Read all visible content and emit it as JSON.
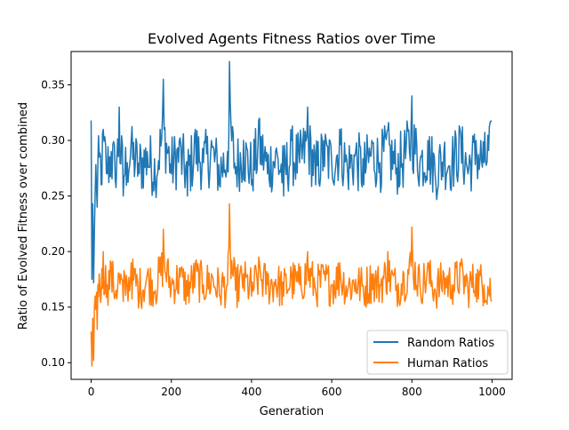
{
  "chart_data": {
    "type": "line",
    "title": "Evolved Agents Fitness Ratios over Time",
    "xlabel": "Generation",
    "ylabel": "Ratio of Evolved Fitness over combined",
    "xlim": [
      -50,
      1050
    ],
    "ylim": [
      0.085,
      0.38
    ],
    "xticks": [
      0,
      200,
      400,
      600,
      800,
      1000
    ],
    "yticks": [
      0.1,
      0.15,
      0.2,
      0.25,
      0.3,
      0.35
    ],
    "xtick_labels": [
      "0",
      "200",
      "400",
      "600",
      "800",
      "1000"
    ],
    "ytick_labels": [
      "0.10",
      "0.15",
      "0.20",
      "0.25",
      "0.30",
      "0.35"
    ],
    "grid": false,
    "legend_position": "lower right",
    "x_range": [
      0,
      999
    ],
    "series": [
      {
        "name": "Random Ratios",
        "color": "#1f77b4",
        "x": [
          0,
          2,
          4,
          6,
          8,
          10,
          15,
          20,
          25,
          30,
          40,
          50,
          60,
          70,
          80,
          90,
          100,
          120,
          140,
          160,
          180,
          200,
          220,
          240,
          260,
          280,
          300,
          320,
          340,
          345,
          360,
          380,
          400,
          420,
          440,
          460,
          480,
          500,
          520,
          540,
          560,
          580,
          600,
          620,
          640,
          660,
          680,
          700,
          720,
          740,
          760,
          780,
          800,
          820,
          840,
          860,
          880,
          900,
          920,
          940,
          960,
          980,
          999
        ],
        "values": [
          0.318,
          0.175,
          0.243,
          0.172,
          0.22,
          0.255,
          0.24,
          0.285,
          0.26,
          0.31,
          0.27,
          0.29,
          0.265,
          0.33,
          0.25,
          0.28,
          0.3,
          0.27,
          0.29,
          0.26,
          0.355,
          0.27,
          0.3,
          0.25,
          0.31,
          0.28,
          0.3,
          0.26,
          0.29,
          0.371,
          0.27,
          0.3,
          0.26,
          0.32,
          0.27,
          0.29,
          0.25,
          0.3,
          0.28,
          0.33,
          0.26,
          0.3,
          0.28,
          0.31,
          0.27,
          0.29,
          0.26,
          0.3,
          0.28,
          0.31,
          0.27,
          0.29,
          0.34,
          0.28,
          0.3,
          0.26,
          0.29,
          0.28,
          0.31,
          0.27,
          0.3,
          0.28,
          0.317
        ]
      },
      {
        "name": "Human Ratios",
        "color": "#ff7f0e",
        "x": [
          0,
          2,
          4,
          6,
          8,
          10,
          15,
          20,
          25,
          30,
          40,
          50,
          60,
          70,
          80,
          90,
          100,
          120,
          140,
          160,
          180,
          200,
          220,
          240,
          260,
          280,
          300,
          320,
          340,
          345,
          360,
          380,
          400,
          420,
          440,
          460,
          480,
          500,
          520,
          540,
          560,
          580,
          600,
          620,
          640,
          660,
          680,
          700,
          720,
          740,
          760,
          780,
          800,
          820,
          840,
          860,
          880,
          900,
          920,
          940,
          960,
          980,
          999
        ],
        "values": [
          0.128,
          0.097,
          0.14,
          0.102,
          0.15,
          0.16,
          0.13,
          0.18,
          0.16,
          0.2,
          0.17,
          0.19,
          0.16,
          0.18,
          0.155,
          0.17,
          0.19,
          0.16,
          0.18,
          0.165,
          0.22,
          0.17,
          0.185,
          0.16,
          0.19,
          0.17,
          0.18,
          0.16,
          0.17,
          0.243,
          0.165,
          0.18,
          0.16,
          0.19,
          0.17,
          0.175,
          0.16,
          0.18,
          0.17,
          0.2,
          0.165,
          0.18,
          0.17,
          0.19,
          0.165,
          0.175,
          0.16,
          0.18,
          0.17,
          0.2,
          0.165,
          0.18,
          0.222,
          0.17,
          0.19,
          0.16,
          0.18,
          0.17,
          0.19,
          0.165,
          0.18,
          0.17,
          0.155
        ]
      }
    ]
  }
}
